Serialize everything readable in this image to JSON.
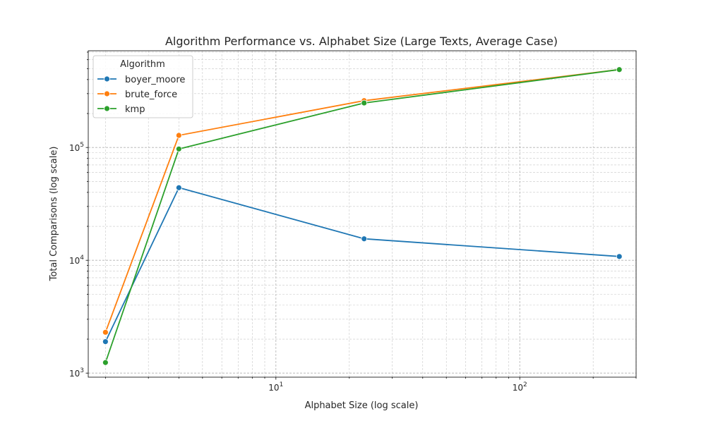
{
  "chart_data": {
    "type": "line",
    "title": "Algorithm Performance vs. Alphabet Size (Large Texts, Average Case)",
    "xlabel": "Alphabet Size (log scale)",
    "ylabel": "Total Comparisons (log scale)",
    "x_scale": "log",
    "y_scale": "log",
    "xlim": [
      1.7,
      300
    ],
    "ylim": [
      920,
      720000
    ],
    "x_ticks": [
      {
        "value": 10,
        "base": "10",
        "exp": "1"
      },
      {
        "value": 100,
        "base": "10",
        "exp": "2"
      }
    ],
    "y_ticks": [
      {
        "value": 1000,
        "base": "10",
        "exp": "3"
      },
      {
        "value": 10000,
        "base": "10",
        "exp": "4"
      },
      {
        "value": 100000,
        "base": "10",
        "exp": "5"
      }
    ],
    "grid": true,
    "legend": {
      "title": "Algorithm",
      "position": "top-left"
    },
    "series": [
      {
        "name": "boyer_moore",
        "color": "#1f77b4",
        "x": [
          2,
          4,
          23,
          256
        ],
        "y": [
          1900,
          44000,
          15500,
          10800
        ]
      },
      {
        "name": "brute_force",
        "color": "#ff7f0e",
        "x": [
          2,
          4,
          23,
          256
        ],
        "y": [
          2300,
          128000,
          260000,
          490000
        ]
      },
      {
        "name": "kmp",
        "color": "#2ca02c",
        "x": [
          2,
          4,
          23,
          256
        ],
        "y": [
          1240,
          97000,
          248000,
          490000
        ]
      }
    ]
  }
}
